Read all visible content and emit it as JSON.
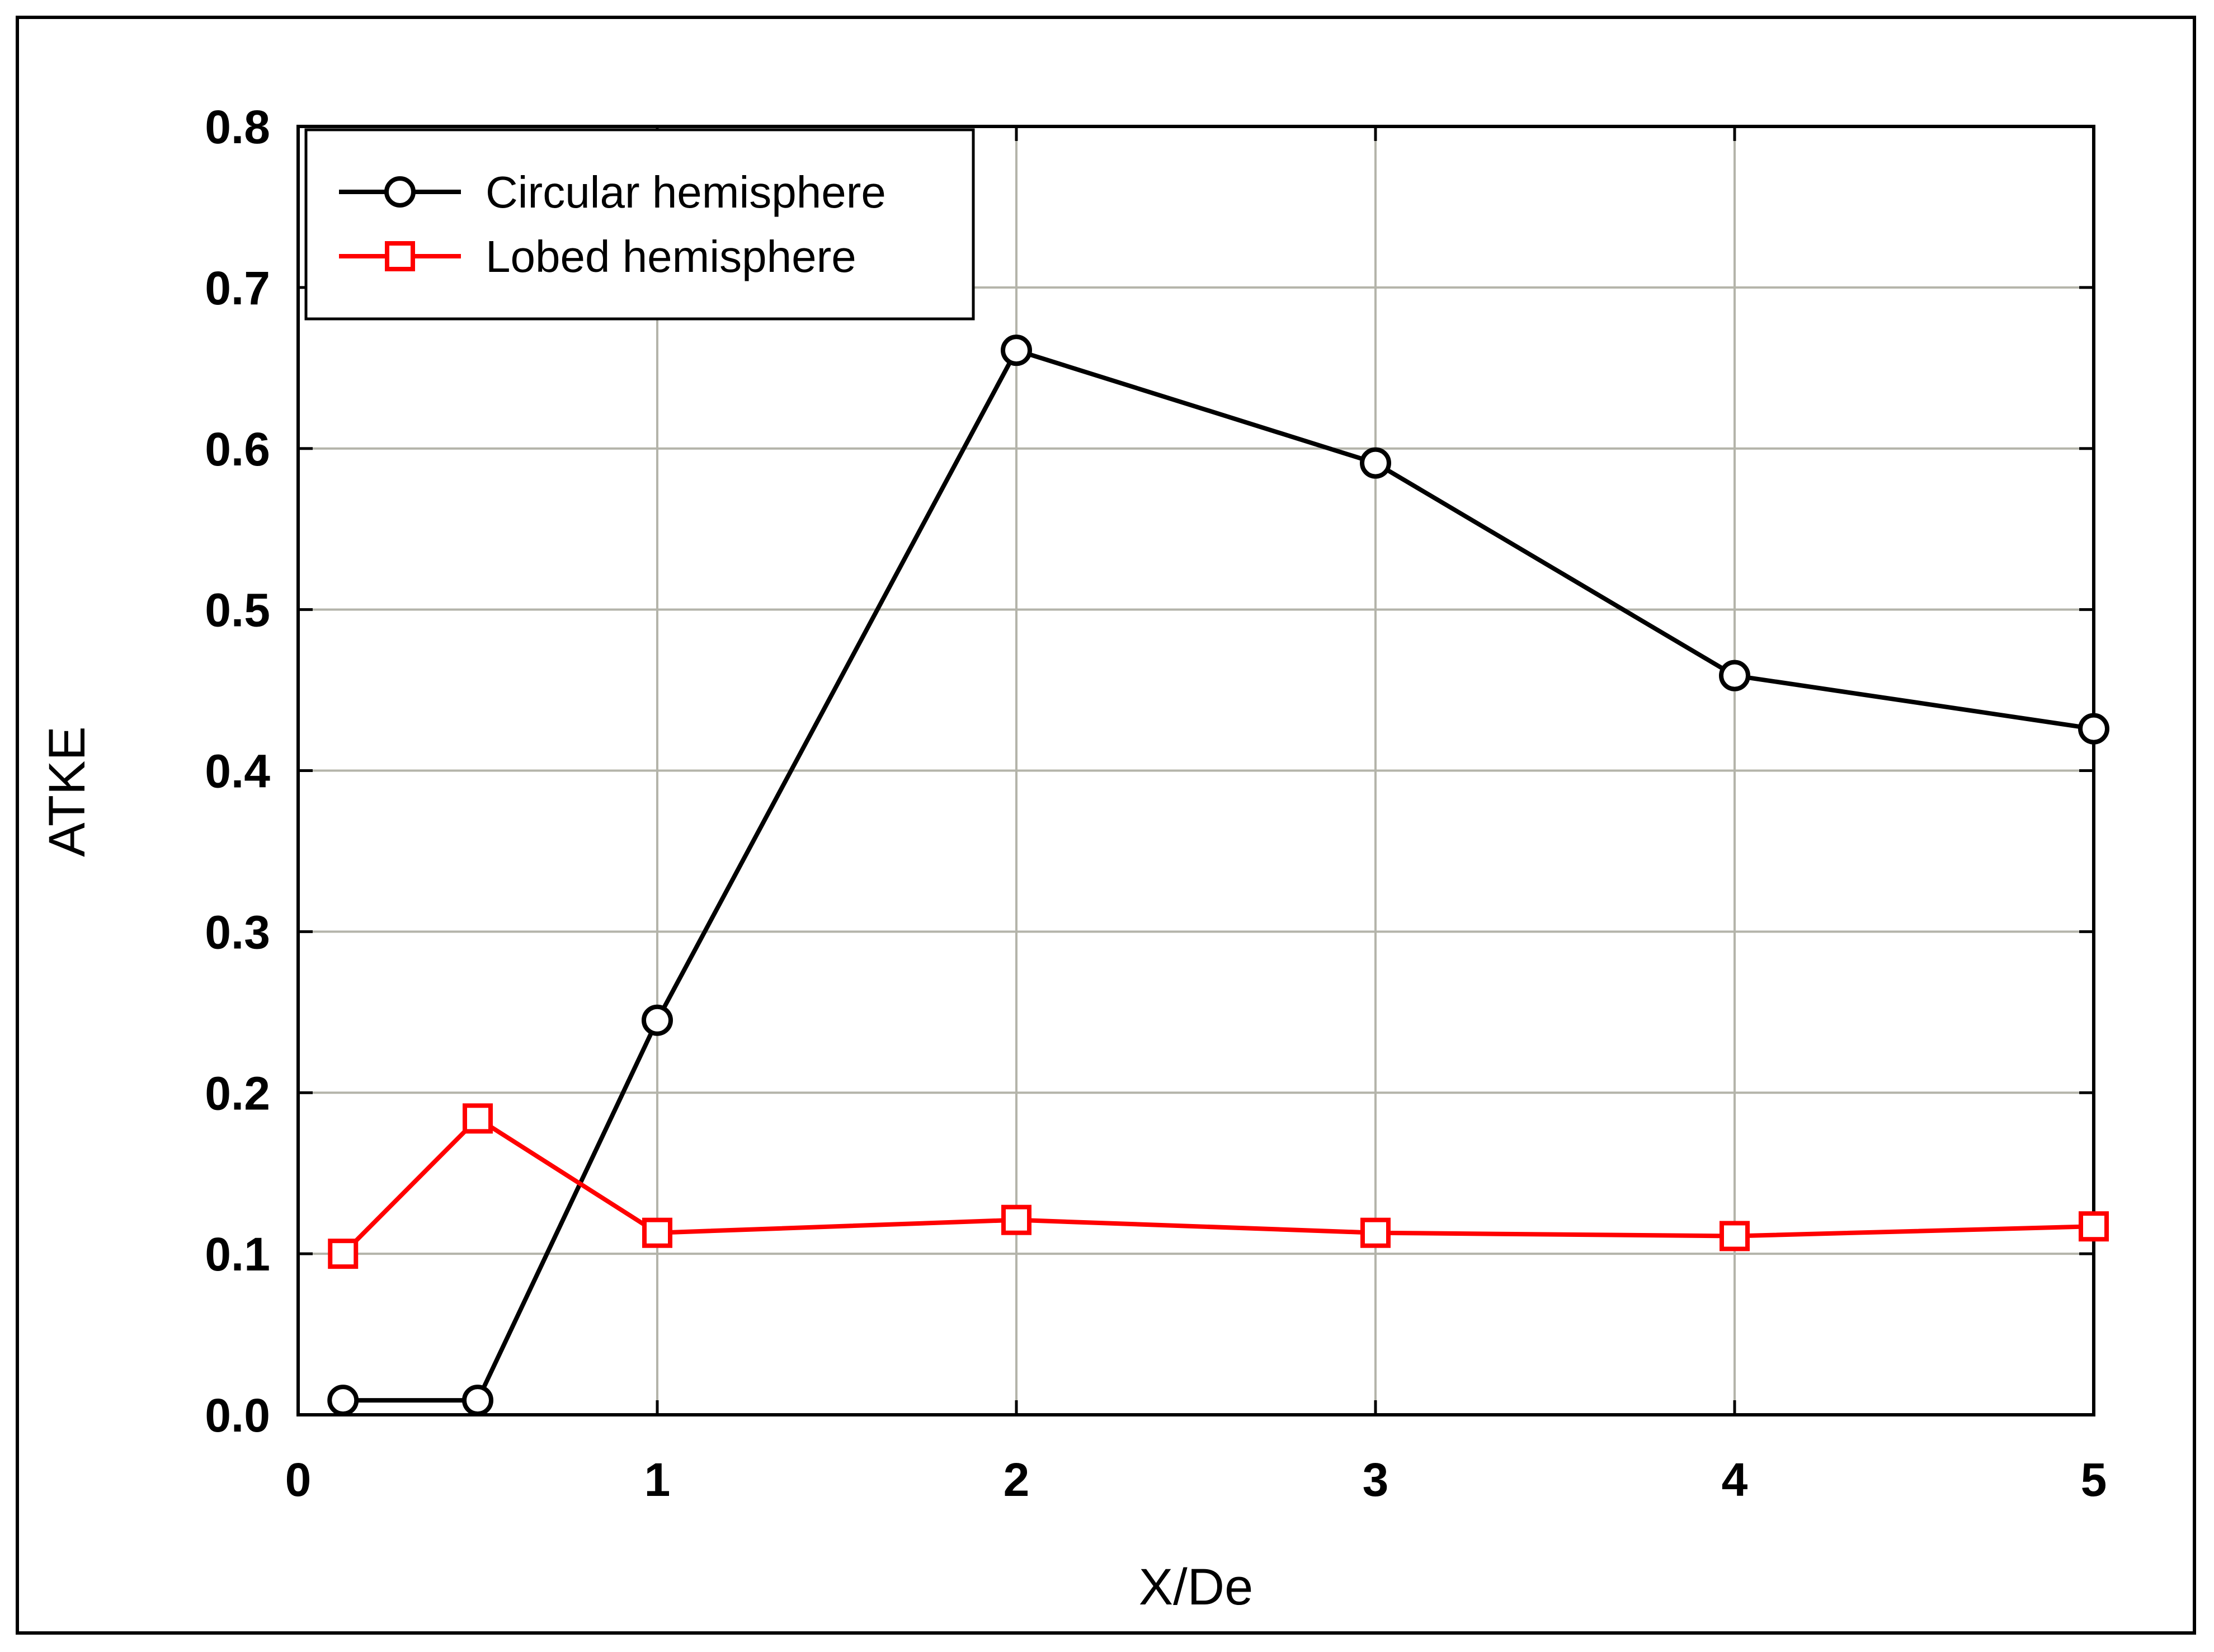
{
  "chart_data": {
    "type": "line",
    "title": "",
    "xlabel": "X/De",
    "ylabel": "ATKE",
    "xlim": [
      0,
      5
    ],
    "ylim": [
      0,
      0.8
    ],
    "xticks": [
      0,
      1,
      2,
      3,
      4,
      5
    ],
    "xtick_labels": [
      "0",
      "1",
      "2",
      "3",
      "4",
      "5"
    ],
    "yticks": [
      0,
      0.1,
      0.2,
      0.3,
      0.4,
      0.5,
      0.6,
      0.7,
      0.8
    ],
    "ytick_labels": [
      "0.0",
      "0.1",
      "0.2",
      "0.3",
      "0.4",
      "0.5",
      "0.6",
      "0.7",
      "0.8"
    ],
    "grid": true,
    "legend_position": "top-left",
    "series": [
      {
        "name": "Circular hemisphere",
        "color": "#000000",
        "marker": "circle",
        "x": [
          0.125,
          0.5,
          1,
          2,
          3,
          4,
          5
        ],
        "y": [
          0.009,
          0.009,
          0.245,
          0.661,
          0.591,
          0.459,
          0.426
        ]
      },
      {
        "name": "Lobed hemisphere",
        "color": "#ff0000",
        "marker": "square",
        "x": [
          0.125,
          0.5,
          1,
          2,
          3,
          4,
          5
        ],
        "y": [
          0.1,
          0.184,
          0.113,
          0.121,
          0.113,
          0.111,
          0.117
        ]
      }
    ]
  }
}
